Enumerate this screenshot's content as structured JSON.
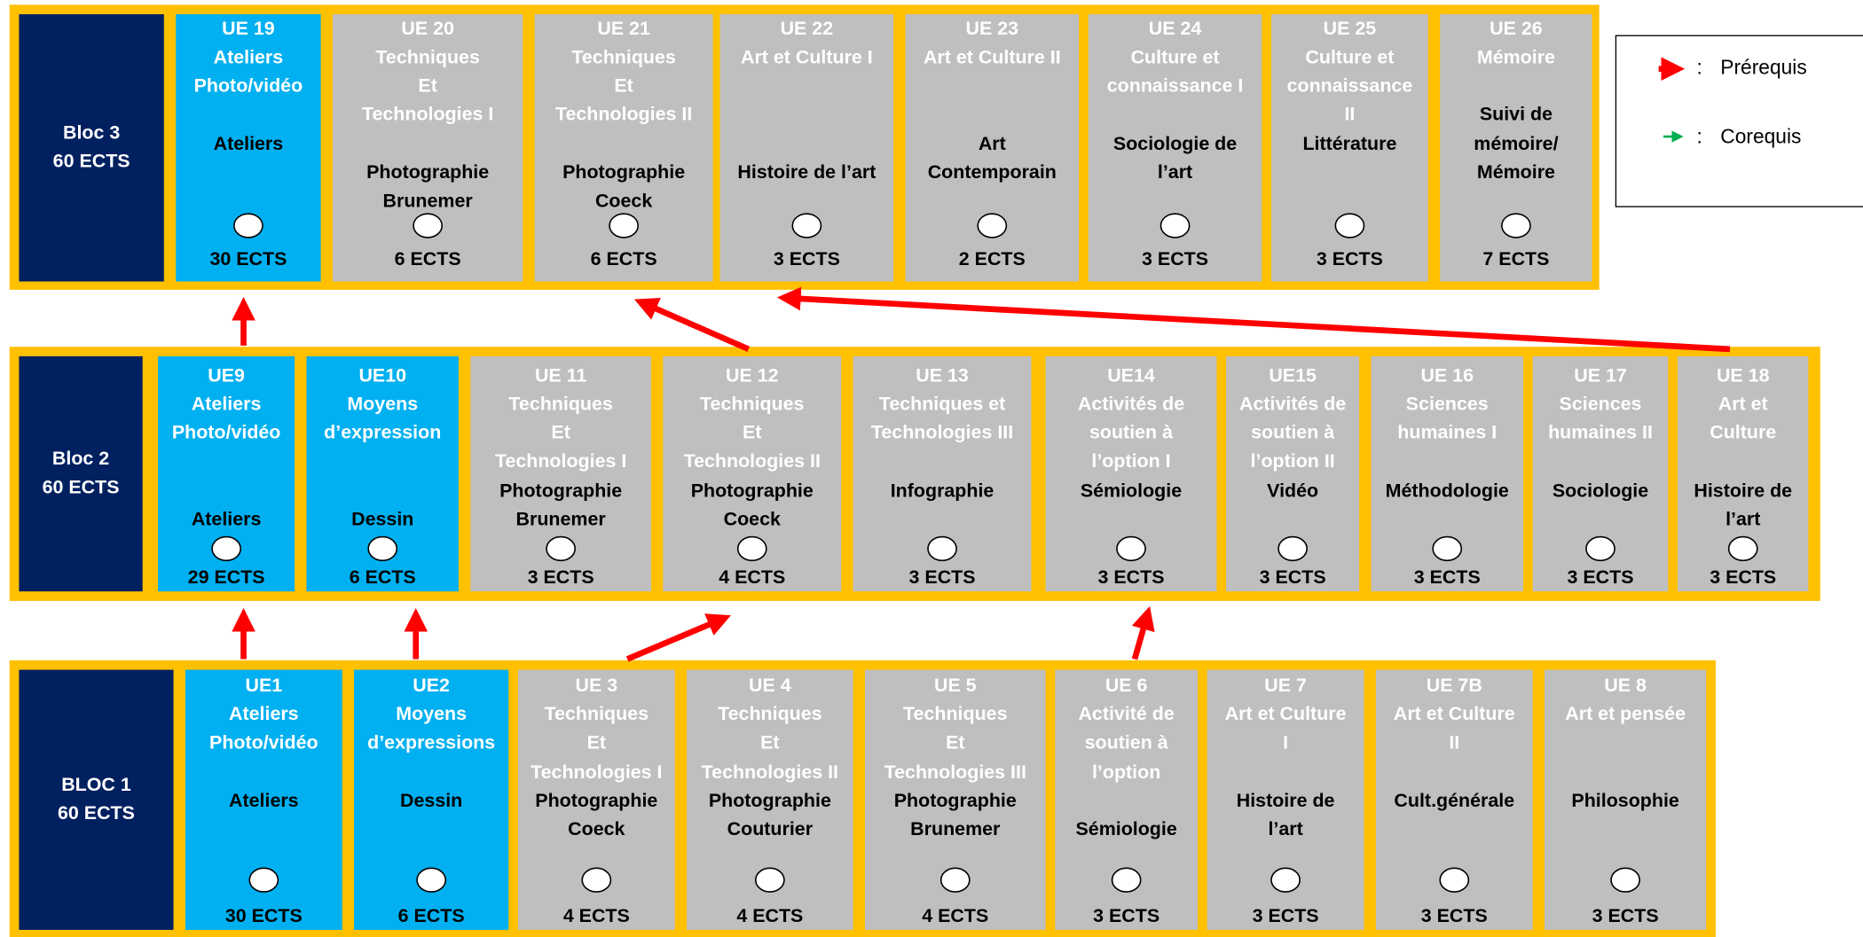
{
  "blocs": [
    {
      "name": "Bloc 3",
      "ects": "60 ECTS",
      "units": [
        {
          "code": "UE 19",
          "title": [
            "Ateliers",
            "Photo/vidéo"
          ],
          "subject": [
            "Ateliers"
          ],
          "ects": "30 ECTS"
        },
        {
          "code": "UE 20",
          "title": [
            "Techniques",
            "Et",
            "Technologies I"
          ],
          "subject": [
            "Photographie",
            "Brunemer"
          ],
          "ects": "6 ECTS"
        },
        {
          "code": "UE 21",
          "title": [
            "Techniques",
            "Et",
            "Technologies II"
          ],
          "subject": [
            "Photographie",
            "Coeck"
          ],
          "ects": "6 ECTS"
        },
        {
          "code": "UE 22",
          "title": [
            "Art et Culture I"
          ],
          "subject": [
            "Histoire de l’art"
          ],
          "ects": "3 ECTS"
        },
        {
          "code": "UE 23",
          "title": [
            "Art et Culture II"
          ],
          "subject": [
            "Art",
            "Contemporain"
          ],
          "ects": "2 ECTS"
        },
        {
          "code": "UE 24",
          "title": [
            "Culture et",
            "connaissance I"
          ],
          "subject": [
            "Sociologie de",
            "l’art"
          ],
          "ects": "3 ECTS"
        },
        {
          "code": "UE 25",
          "title": [
            "Culture et",
            "connaissance",
            "II"
          ],
          "subject": [
            "Littérature"
          ],
          "ects": "3 ECTS"
        },
        {
          "code": "UE 26",
          "title": [
            "Mémoire"
          ],
          "subject": [
            "Suivi de",
            "mémoire/",
            "Mémoire"
          ],
          "ects": "7 ECTS"
        }
      ]
    },
    {
      "name": "Bloc 2",
      "ects": "60 ECTS",
      "units": [
        {
          "code": "UE9",
          "title": [
            "Ateliers",
            "Photo/vidéo"
          ],
          "subject": [
            "Ateliers"
          ],
          "ects": "29 ECTS"
        },
        {
          "code": "UE10",
          "title": [
            "Moyens",
            "d’expression"
          ],
          "subject": [
            "Dessin"
          ],
          "ects": "6 ECTS"
        },
        {
          "code": "UE 11",
          "title": [
            "Techniques",
            "Et",
            "Technologies I"
          ],
          "subject": [
            "Photographie",
            "Brunemer"
          ],
          "ects": "3 ECTS"
        },
        {
          "code": "UE 12",
          "title": [
            "Techniques",
            "Et",
            "Technologies II"
          ],
          "subject": [
            "Photographie",
            "Coeck"
          ],
          "ects": "4 ECTS"
        },
        {
          "code": "UE 13",
          "title": [
            "Techniques et",
            "Technologies III"
          ],
          "subject": [
            "Infographie"
          ],
          "ects": "3 ECTS"
        },
        {
          "code": "UE14",
          "title": [
            "Activités de",
            "soutien à",
            "l’option I"
          ],
          "subject": [
            "Sémiologie"
          ],
          "ects": "3 ECTS"
        },
        {
          "code": "UE15",
          "title": [
            "Activités de",
            "soutien à",
            "l’option II"
          ],
          "subject": [
            "Vidéo"
          ],
          "ects": "3 ECTS"
        },
        {
          "code": "UE 16",
          "title": [
            "Sciences",
            "humaines I"
          ],
          "subject": [
            "Méthodologie"
          ],
          "ects": "3 ECTS"
        },
        {
          "code": "UE 17",
          "title": [
            "Sciences",
            "humaines II"
          ],
          "subject": [
            "Sociologie"
          ],
          "ects": "3 ECTS"
        },
        {
          "code": "UE 18",
          "title": [
            "Art et",
            "Culture"
          ],
          "subject": [
            "Histoire de",
            "l’art"
          ],
          "ects": "3 ECTS"
        }
      ]
    },
    {
      "name": "BLOC 1",
      "ects": "60 ECTS",
      "units": [
        {
          "code": "UE1",
          "title": [
            "Ateliers",
            "Photo/vidéo"
          ],
          "subject": [
            "Ateliers"
          ],
          "ects": "30 ECTS"
        },
        {
          "code": "UE2",
          "title": [
            "Moyens",
            "d’expressions"
          ],
          "subject": [
            "Dessin"
          ],
          "ects": "6 ECTS"
        },
        {
          "code": "UE 3",
          "title": [
            "Techniques",
            "Et",
            "Technologies I"
          ],
          "subject": [
            "Photographie",
            "Coeck"
          ],
          "ects": "4 ECTS"
        },
        {
          "code": "UE 4",
          "title": [
            "Techniques",
            "Et",
            "Technologies II"
          ],
          "subject": [
            "Photographie",
            "Couturier"
          ],
          "ects": "4 ECTS"
        },
        {
          "code": "UE 5",
          "title": [
            "Techniques",
            "Et",
            "Technologies III"
          ],
          "subject": [
            "Photographie",
            "Brunemer"
          ],
          "ects": "4 ECTS"
        },
        {
          "code": "UE 6",
          "title": [
            "Activité de",
            "soutien à",
            "l’option"
          ],
          "subject": [
            "Sémiologie"
          ],
          "ects": "3 ECTS"
        },
        {
          "code": "UE 7",
          "title": [
            "Art et Culture",
            "I"
          ],
          "subject": [
            "Histoire de",
            "l’art"
          ],
          "ects": "3 ECTS"
        },
        {
          "code": "UE 7B",
          "title": [
            "Art et Culture",
            "II"
          ],
          "subject": [
            "Cult.générale"
          ],
          "ects": "3 ECTS"
        },
        {
          "code": "UE 8",
          "title": [
            "Art et pensée"
          ],
          "subject": [
            "Philosophie"
          ],
          "ects": "3 ECTS"
        }
      ]
    }
  ],
  "legend": [
    {
      "separator": ":",
      "label": "Prérequis"
    },
    {
      "separator": ":",
      "label": "Corequis"
    }
  ]
}
